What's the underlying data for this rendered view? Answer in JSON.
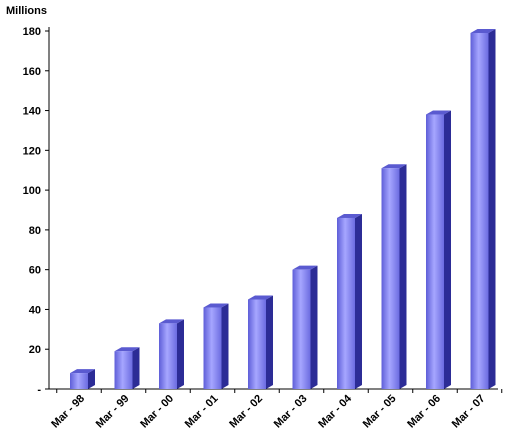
{
  "chart_data": {
    "type": "bar",
    "unit_label": "Millions",
    "title": "",
    "xlabel": "",
    "ylabel": "",
    "categories": [
      "Mar - 98",
      "Mar - 99",
      "Mar - 00",
      "Mar - 01",
      "Mar - 02",
      "Mar - 03",
      "Mar - 04",
      "Mar - 05",
      "Mar - 06",
      "Mar - 07"
    ],
    "values": [
      8,
      19,
      33,
      41,
      45,
      60,
      86,
      111,
      138,
      179
    ],
    "ylim": [
      0,
      180
    ],
    "yticks": [
      0,
      20,
      40,
      60,
      80,
      100,
      120,
      140,
      160,
      180
    ],
    "ytick_labels": [
      "-",
      "20",
      "40",
      "60",
      "80",
      "100",
      "120",
      "140",
      "160",
      "180"
    ],
    "grid": false,
    "legend": "none",
    "colors": {
      "bar_front": "#8f8ff2",
      "bar_side": "#2c2c96",
      "bar_top": "#5a5ad0",
      "axis": "#000000"
    }
  }
}
